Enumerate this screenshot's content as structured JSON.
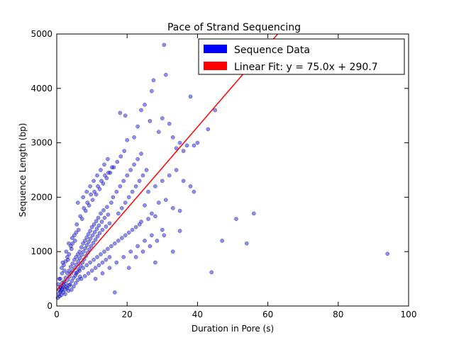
{
  "chart_data": {
    "type": "scatter",
    "title": "Pace of Strand Sequencing",
    "xlabel": "Duration in Pore (s)",
    "ylabel": "Sequence Length (bp)",
    "xlim": [
      0,
      100
    ],
    "ylim": [
      0,
      5000
    ],
    "xticks": [
      "0",
      "20",
      "40",
      "60",
      "80",
      "100"
    ],
    "yticks": [
      "0",
      "1000",
      "2000",
      "3000",
      "4000",
      "5000"
    ],
    "grid": false,
    "legend_position": "top-right",
    "series": [
      {
        "name": "Sequence Data",
        "kind": "scatter",
        "color": "#0000ff",
        "opacity": 0.45,
        "points": [
          [
            0.3,
            150
          ],
          [
            0.5,
            220
          ],
          [
            0.6,
            300
          ],
          [
            0.8,
            180
          ],
          [
            1.0,
            260
          ],
          [
            1.1,
            340
          ],
          [
            1.3,
            200
          ],
          [
            1.5,
            420
          ],
          [
            1.6,
            310
          ],
          [
            1.8,
            250
          ],
          [
            2.0,
            380
          ],
          [
            2.1,
            450
          ],
          [
            2.3,
            300
          ],
          [
            2.5,
            520
          ],
          [
            2.6,
            410
          ],
          [
            2.8,
            350
          ],
          [
            3.0,
            600
          ],
          [
            3.1,
            480
          ],
          [
            3.3,
            280
          ],
          [
            3.5,
            650
          ],
          [
            3.6,
            540
          ],
          [
            3.8,
            400
          ],
          [
            4.0,
            720
          ],
          [
            4.1,
            600
          ],
          [
            4.3,
            460
          ],
          [
            4.5,
            780
          ],
          [
            4.6,
            650
          ],
          [
            4.8,
            520
          ],
          [
            5.0,
            850
          ],
          [
            5.1,
            700
          ],
          [
            5.3,
            560
          ],
          [
            5.5,
            900
          ],
          [
            5.6,
            760
          ],
          [
            5.8,
            620
          ],
          [
            6.0,
            950
          ],
          [
            6.1,
            820
          ],
          [
            6.3,
            680
          ],
          [
            6.5,
            1000
          ],
          [
            6.6,
            880
          ],
          [
            6.8,
            740
          ],
          [
            7.0,
            1080
          ],
          [
            7.1,
            940
          ],
          [
            7.3,
            800
          ],
          [
            7.5,
            1150
          ],
          [
            7.6,
            1000
          ],
          [
            7.8,
            860
          ],
          [
            8.0,
            1200
          ],
          [
            8.1,
            1060
          ],
          [
            8.3,
            920
          ],
          [
            8.5,
            1260
          ],
          [
            8.6,
            1120
          ],
          [
            8.8,
            980
          ],
          [
            9.0,
            1320
          ],
          [
            9.1,
            1180
          ],
          [
            9.3,
            1040
          ],
          [
            9.5,
            1380
          ],
          [
            9.6,
            1240
          ],
          [
            9.8,
            1100
          ],
          [
            10.0,
            1450
          ],
          [
            10.2,
            1300
          ],
          [
            10.4,
            1160
          ],
          [
            10.6,
            1500
          ],
          [
            10.8,
            1360
          ],
          [
            11.0,
            1220
          ],
          [
            11.2,
            1560
          ],
          [
            11.4,
            1420
          ],
          [
            11.6,
            1280
          ],
          [
            11.8,
            1620
          ],
          [
            12.0,
            1480
          ],
          [
            12.2,
            1340
          ],
          [
            12.5,
            1700
          ],
          [
            12.8,
            1550
          ],
          [
            13.0,
            1400
          ],
          [
            13.3,
            1760
          ],
          [
            13.6,
            1620
          ],
          [
            14.0,
            1460
          ],
          [
            14.3,
            1820
          ],
          [
            14.6,
            1680
          ],
          [
            15.0,
            1520
          ],
          [
            15.5,
            1900
          ],
          [
            2.2,
            650
          ],
          [
            3.2,
            850
          ],
          [
            4.2,
            1050
          ],
          [
            5.2,
            1200
          ],
          [
            6.2,
            1400
          ],
          [
            7.2,
            1600
          ],
          [
            8.2,
            1750
          ],
          [
            9.2,
            1850
          ],
          [
            10.2,
            1950
          ],
          [
            11.2,
            2050
          ],
          [
            12.2,
            2150
          ],
          [
            13.2,
            2250
          ],
          [
            14.2,
            2350
          ],
          [
            15.2,
            2450
          ],
          [
            16.2,
            2550
          ],
          [
            17.2,
            2650
          ],
          [
            18.2,
            2750
          ],
          [
            19.2,
            2850
          ],
          [
            6.0,
            1900
          ],
          [
            7.5,
            2000
          ],
          [
            8.5,
            2100
          ],
          [
            9.5,
            2200
          ],
          [
            10.5,
            2300
          ],
          [
            11.5,
            2400
          ],
          [
            12.5,
            2500
          ],
          [
            13.5,
            2600
          ],
          [
            14.5,
            2700
          ],
          [
            5.5,
            600
          ],
          [
            6.5,
            650
          ],
          [
            7.5,
            700
          ],
          [
            8.5,
            750
          ],
          [
            9.5,
            800
          ],
          [
            10.5,
            850
          ],
          [
            11.5,
            900
          ],
          [
            12.5,
            950
          ],
          [
            13.5,
            1000
          ],
          [
            14.5,
            1050
          ],
          [
            15.5,
            1100
          ],
          [
            16.5,
            1150
          ],
          [
            17.5,
            1200
          ],
          [
            18.5,
            1250
          ],
          [
            19.5,
            1300
          ],
          [
            20.5,
            1350
          ],
          [
            21.5,
            1400
          ],
          [
            22.5,
            1450
          ],
          [
            23.5,
            1500
          ],
          [
            11.0,
            500
          ],
          [
            13.0,
            600
          ],
          [
            15.0,
            700
          ],
          [
            17.0,
            800
          ],
          [
            19.0,
            900
          ],
          [
            21.0,
            1000
          ],
          [
            23.0,
            1100
          ],
          [
            25.0,
            1200
          ],
          [
            27.0,
            1300
          ],
          [
            16.5,
            250
          ],
          [
            20.5,
            700
          ],
          [
            22.5,
            900
          ],
          [
            24.5,
            1000
          ],
          [
            26.5,
            1100
          ],
          [
            28.5,
            1200
          ],
          [
            30.5,
            1300
          ],
          [
            16.0,
            2000
          ],
          [
            17.0,
            2100
          ],
          [
            18.0,
            2200
          ],
          [
            19.0,
            2300
          ],
          [
            20.0,
            2400
          ],
          [
            21.0,
            2500
          ],
          [
            22.0,
            2600
          ],
          [
            23.0,
            2700
          ],
          [
            24.0,
            2800
          ],
          [
            17.5,
            1700
          ],
          [
            18.5,
            1800
          ],
          [
            19.5,
            1900
          ],
          [
            20.5,
            2000
          ],
          [
            21.5,
            2100
          ],
          [
            22.5,
            2200
          ],
          [
            23.5,
            2300
          ],
          [
            24.5,
            2400
          ],
          [
            25.5,
            2500
          ],
          [
            18.0,
            3550
          ],
          [
            19.5,
            3500
          ],
          [
            20.0,
            3050
          ],
          [
            22.0,
            3100
          ],
          [
            23.0,
            3300
          ],
          [
            24.0,
            3600
          ],
          [
            25.0,
            3700
          ],
          [
            26.5,
            3400
          ],
          [
            27.0,
            3950
          ],
          [
            27.5,
            4150
          ],
          [
            29.0,
            3200
          ],
          [
            30.0,
            3450
          ],
          [
            30.5,
            4800
          ],
          [
            31.0,
            4250
          ],
          [
            32.0,
            3350
          ],
          [
            33.0,
            3100
          ],
          [
            34.0,
            2900
          ],
          [
            35.0,
            3000
          ],
          [
            36.0,
            2850
          ],
          [
            37.0,
            2950
          ],
          [
            38.0,
            3850
          ],
          [
            39.0,
            2950
          ],
          [
            40.0,
            3000
          ],
          [
            43.0,
            3250
          ],
          [
            45.0,
            3600
          ],
          [
            26.0,
            2100
          ],
          [
            28.0,
            2200
          ],
          [
            30.0,
            2300
          ],
          [
            32.0,
            2400
          ],
          [
            34.0,
            2500
          ],
          [
            36.0,
            2300
          ],
          [
            38.0,
            2200
          ],
          [
            39.0,
            2100
          ],
          [
            25.0,
            1850
          ],
          [
            27.0,
            1700
          ],
          [
            29.0,
            1900
          ],
          [
            31.0,
            1950
          ],
          [
            33.0,
            1800
          ],
          [
            35.0,
            1750
          ],
          [
            24.0,
            1550
          ],
          [
            26.0,
            1600
          ],
          [
            28.0,
            1650
          ],
          [
            30.0,
            1400
          ],
          [
            35.0,
            1380
          ],
          [
            28.0,
            800
          ],
          [
            33.0,
            1000
          ],
          [
            47.0,
            1200
          ],
          [
            44.0,
            620
          ],
          [
            51.0,
            1600
          ],
          [
            54.0,
            1150
          ],
          [
            56.0,
            1700
          ],
          [
            94.0,
            960
          ],
          [
            1.0,
            500
          ],
          [
            1.5,
            600
          ],
          [
            2.0,
            750
          ],
          [
            2.5,
            820
          ],
          [
            3.0,
            900
          ],
          [
            3.5,
            950
          ],
          [
            4.0,
            1100
          ],
          [
            4.5,
            1150
          ],
          [
            5.0,
            1300
          ],
          [
            5.5,
            1350
          ],
          [
            1.2,
            280
          ],
          [
            1.8,
            350
          ],
          [
            2.4,
            220
          ],
          [
            3.0,
            330
          ],
          [
            3.6,
            380
          ],
          [
            4.2,
            300
          ],
          [
            4.8,
            360
          ],
          [
            5.4,
            420
          ],
          [
            6.0,
            480
          ],
          [
            6.6,
            540
          ],
          [
            0.4,
            400
          ],
          [
            0.7,
            500
          ],
          [
            0.9,
            350
          ],
          [
            1.4,
            700
          ],
          [
            1.7,
            800
          ],
          [
            2.7,
            1000
          ],
          [
            3.4,
            1150
          ],
          [
            4.4,
            1250
          ],
          [
            5.7,
            1500
          ],
          [
            6.7,
            1650
          ],
          [
            7.7,
            1800
          ],
          [
            8.7,
            1900
          ],
          [
            9.7,
            2050
          ],
          [
            10.7,
            2100
          ],
          [
            11.7,
            2200
          ],
          [
            12.7,
            2300
          ],
          [
            13.7,
            2400
          ],
          [
            14.7,
            2450
          ],
          [
            15.7,
            2550
          ],
          [
            7.0,
            500
          ],
          [
            8.0,
            550
          ],
          [
            9.0,
            600
          ],
          [
            10.0,
            650
          ],
          [
            11.0,
            700
          ],
          [
            12.0,
            750
          ],
          [
            13.0,
            800
          ],
          [
            14.0,
            850
          ],
          [
            15.0,
            900
          ]
        ]
      },
      {
        "name": "Linear Fit: y = 75.0x + 290.7",
        "kind": "line",
        "color": "#ff0000",
        "slope": 75.0,
        "intercept": 290.7
      }
    ]
  }
}
